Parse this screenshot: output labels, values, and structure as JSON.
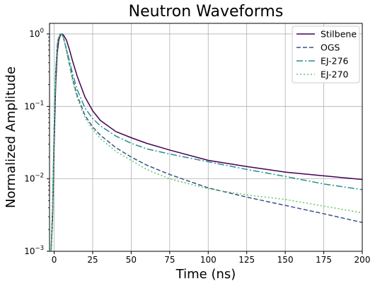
{
  "chart_data": {
    "type": "line",
    "title": "Neutron Waveforms",
    "xlabel": "Time (ns)",
    "ylabel": "Normalized Amplitude",
    "xlim": [
      -3,
      200
    ],
    "ylim": [
      0.001,
      1.4
    ],
    "yscale": "log",
    "grid": true,
    "legend_position": "top-right",
    "x_ticks": [
      "0",
      "25",
      "50",
      "75",
      "100",
      "125",
      "150",
      "175",
      "200"
    ],
    "y_ticks": [
      {
        "base": "10",
        "exp": "0"
      },
      {
        "base": "10",
        "exp": "−1"
      },
      {
        "base": "10",
        "exp": "−2"
      },
      {
        "base": "10",
        "exp": "−3"
      }
    ],
    "series": [
      {
        "name": "Stilbene",
        "color": "#440154",
        "dash": "solid",
        "points": [
          [
            -2,
            0.001
          ],
          [
            -1,
            0.003
          ],
          [
            0,
            0.03
          ],
          [
            1,
            0.2
          ],
          [
            2,
            0.55
          ],
          [
            3,
            0.82
          ],
          [
            4,
            0.96
          ],
          [
            5,
            1.0
          ],
          [
            6,
            0.97
          ],
          [
            8,
            0.82
          ],
          [
            10,
            0.6
          ],
          [
            12,
            0.42
          ],
          [
            15,
            0.26
          ],
          [
            20,
            0.135
          ],
          [
            25,
            0.087
          ],
          [
            30,
            0.064
          ],
          [
            40,
            0.045
          ],
          [
            50,
            0.037
          ],
          [
            60,
            0.031
          ],
          [
            75,
            0.025
          ],
          [
            100,
            0.018
          ],
          [
            125,
            0.0148
          ],
          [
            150,
            0.0124
          ],
          [
            175,
            0.011
          ],
          [
            200,
            0.0098
          ]
        ]
      },
      {
        "name": "OGS",
        "color": "#3b528b",
        "dash": "6,3",
        "points": [
          [
            -2,
            0.001
          ],
          [
            -1,
            0.004
          ],
          [
            0,
            0.05
          ],
          [
            1,
            0.3
          ],
          [
            2,
            0.7
          ],
          [
            3,
            0.93
          ],
          [
            4,
            1.0
          ],
          [
            5,
            0.98
          ],
          [
            6,
            0.9
          ],
          [
            8,
            0.6
          ],
          [
            10,
            0.38
          ],
          [
            12,
            0.24
          ],
          [
            15,
            0.14
          ],
          [
            20,
            0.075
          ],
          [
            25,
            0.052
          ],
          [
            30,
            0.04
          ],
          [
            40,
            0.027
          ],
          [
            50,
            0.02
          ],
          [
            60,
            0.0155
          ],
          [
            75,
            0.0115
          ],
          [
            100,
            0.0075
          ],
          [
            125,
            0.0056
          ],
          [
            150,
            0.0043
          ],
          [
            175,
            0.0033
          ],
          [
            200,
            0.0025
          ]
        ]
      },
      {
        "name": "EJ-276",
        "color": "#21918c",
        "dash": "9,3,2,3",
        "points": [
          [
            -2,
            0.001
          ],
          [
            -1,
            0.004
          ],
          [
            0,
            0.05
          ],
          [
            1,
            0.3
          ],
          [
            2,
            0.7
          ],
          [
            3,
            0.93
          ],
          [
            4,
            1.0
          ],
          [
            5,
            0.98
          ],
          [
            6,
            0.9
          ],
          [
            8,
            0.62
          ],
          [
            10,
            0.42
          ],
          [
            12,
            0.28
          ],
          [
            15,
            0.17
          ],
          [
            20,
            0.095
          ],
          [
            25,
            0.068
          ],
          [
            30,
            0.054
          ],
          [
            40,
            0.039
          ],
          [
            50,
            0.031
          ],
          [
            60,
            0.026
          ],
          [
            75,
            0.022
          ],
          [
            100,
            0.0172
          ],
          [
            125,
            0.0135
          ],
          [
            150,
            0.0108
          ],
          [
            175,
            0.0085
          ],
          [
            200,
            0.0071
          ]
        ]
      },
      {
        "name": "EJ-270",
        "color": "#5ec962",
        "dash": "2,3",
        "points": [
          [
            -2,
            0.001
          ],
          [
            -1,
            0.004
          ],
          [
            0,
            0.05
          ],
          [
            1,
            0.3
          ],
          [
            2,
            0.7
          ],
          [
            3,
            0.93
          ],
          [
            4,
            1.0
          ],
          [
            5,
            0.98
          ],
          [
            6,
            0.9
          ],
          [
            8,
            0.58
          ],
          [
            10,
            0.36
          ],
          [
            12,
            0.22
          ],
          [
            15,
            0.13
          ],
          [
            20,
            0.07
          ],
          [
            25,
            0.048
          ],
          [
            30,
            0.036
          ],
          [
            40,
            0.024
          ],
          [
            50,
            0.018
          ],
          [
            60,
            0.0135
          ],
          [
            75,
            0.01
          ],
          [
            100,
            0.0073
          ],
          [
            125,
            0.006
          ],
          [
            150,
            0.0052
          ],
          [
            175,
            0.0042
          ],
          [
            200,
            0.0034
          ]
        ]
      }
    ]
  }
}
